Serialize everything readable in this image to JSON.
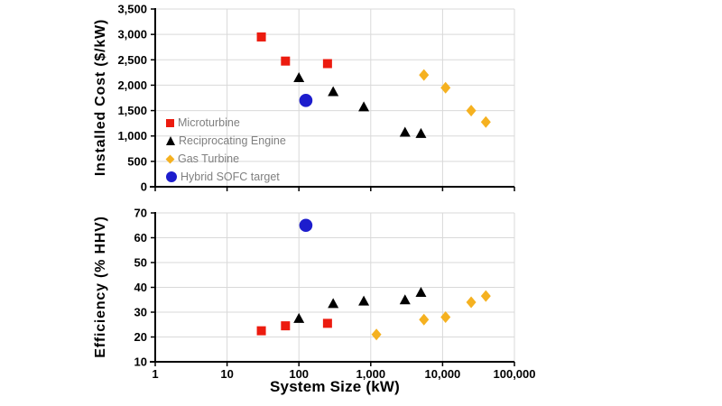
{
  "figure": {
    "background": "#ffffff",
    "grid_color": "#d9d9d9",
    "axis_color": "#000000",
    "tick_label_color": "#000000",
    "legend_text_color": "#7f7f7f"
  },
  "axes": {
    "xlabel": "System Size (kW)",
    "xscale": "log",
    "xlim": [
      1,
      100000
    ],
    "xticks": [
      "1",
      "10",
      "100",
      "1,000",
      "10,000",
      "100,000"
    ],
    "grid": true,
    "legend_position": "top-chart lower-left"
  },
  "legend": [
    {
      "label": "Microturbine",
      "marker": "square",
      "color": "#ec1b0f"
    },
    {
      "label": "Reciprocating Engine",
      "marker": "triangle",
      "color": "#000000"
    },
    {
      "label": "Gas Turbine",
      "marker": "diamond",
      "color": "#f5b120"
    },
    {
      "label": "Hybrid SOFC target",
      "marker": "circle",
      "color": "#1d1dcd"
    }
  ],
  "chart_data": [
    {
      "type": "scatter",
      "ylabel": "Installed Cost ($/kW)",
      "ylim": [
        0,
        3500
      ],
      "yticks": [
        "0",
        "500",
        "1,000",
        "1,500",
        "2,000",
        "2,500",
        "3,000",
        "3,500"
      ],
      "xlim": [
        1,
        100000
      ],
      "xscale": "log",
      "grid": true,
      "series": [
        {
          "name": "Microturbine",
          "marker": "square",
          "color": "#ec1b0f",
          "points": [
            [
              30,
              2950
            ],
            [
              65,
              2475
            ],
            [
              250,
              2425
            ]
          ]
        },
        {
          "name": "Reciprocating Engine",
          "marker": "triangle",
          "color": "#000000",
          "points": [
            [
              100,
              2150
            ],
            [
              300,
              1875
            ],
            [
              800,
              1575
            ],
            [
              3000,
              1075
            ],
            [
              5000,
              1050
            ]
          ]
        },
        {
          "name": "Gas Turbine",
          "marker": "diamond",
          "color": "#f5b120",
          "points": [
            [
              5500,
              2200
            ],
            [
              11000,
              1950
            ],
            [
              25000,
              1500
            ],
            [
              40000,
              1275
            ]
          ]
        },
        {
          "name": "Hybrid SOFC target",
          "marker": "circle",
          "color": "#1d1dcd",
          "points": [
            [
              125,
              1700
            ]
          ]
        }
      ]
    },
    {
      "type": "scatter",
      "ylabel": "Efficiency (% HHV)",
      "ylim": [
        10,
        70
      ],
      "yticks": [
        "10",
        "20",
        "30",
        "40",
        "50",
        "60",
        "70"
      ],
      "xlim": [
        1,
        100000
      ],
      "xscale": "log",
      "grid": true,
      "series": [
        {
          "name": "Microturbine",
          "marker": "square",
          "color": "#ec1b0f",
          "points": [
            [
              30,
              22.5
            ],
            [
              65,
              24.5
            ],
            [
              250,
              25.5
            ]
          ]
        },
        {
          "name": "Reciprocating Engine",
          "marker": "triangle",
          "color": "#000000",
          "points": [
            [
              100,
              27.5
            ],
            [
              300,
              33.5
            ],
            [
              800,
              34.5
            ],
            [
              3000,
              35
            ],
            [
              5000,
              38
            ]
          ]
        },
        {
          "name": "Gas Turbine",
          "marker": "diamond",
          "color": "#f5b120",
          "points": [
            [
              1200,
              21
            ],
            [
              5500,
              27
            ],
            [
              11000,
              28
            ],
            [
              25000,
              34
            ],
            [
              40000,
              36.5
            ]
          ]
        },
        {
          "name": "Hybrid SOFC target",
          "marker": "circle",
          "color": "#1d1dcd",
          "points": [
            [
              125,
              65
            ]
          ]
        }
      ]
    }
  ]
}
